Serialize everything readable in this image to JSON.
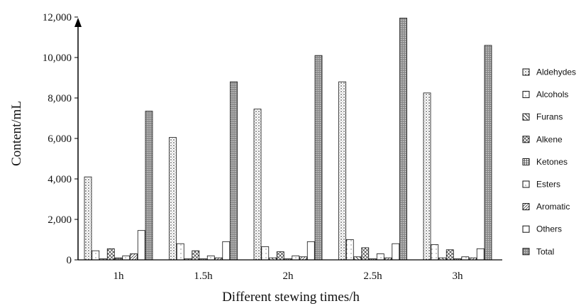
{
  "chart_data": {
    "type": "bar",
    "title": "",
    "xlabel": "Different stewing times/h",
    "ylabel": "Content/mL",
    "ylim": [
      0,
      12000
    ],
    "yticks": [
      0,
      2000,
      4000,
      6000,
      8000,
      10000,
      12000
    ],
    "ytick_labels": [
      "0",
      "2,000",
      "4,000",
      "6,000",
      "8,000",
      "10,000",
      "12,000"
    ],
    "categories": [
      "1h",
      "1.5h",
      "2h",
      "2.5h",
      "3h"
    ],
    "grid": false,
    "legend_position": "right",
    "series": [
      {
        "name": "Aldehydes",
        "pattern": "dots",
        "values": [
          4100,
          6050,
          7450,
          8800,
          8250
        ]
      },
      {
        "name": "Alcohols",
        "pattern": "sparse",
        "values": [
          450,
          800,
          650,
          1000,
          750
        ]
      },
      {
        "name": "Furans",
        "pattern": "diagonal",
        "values": [
          50,
          50,
          100,
          150,
          100
        ]
      },
      {
        "name": "Alkene",
        "pattern": "crosshatch",
        "values": [
          550,
          450,
          400,
          600,
          500
        ]
      },
      {
        "name": "Ketones",
        "pattern": "grid",
        "values": [
          100,
          50,
          50,
          50,
          50
        ]
      },
      {
        "name": "Esters",
        "pattern": "sparse",
        "values": [
          200,
          200,
          200,
          300,
          150
        ]
      },
      {
        "name": "Aromatic",
        "pattern": "hatch",
        "values": [
          300,
          100,
          150,
          100,
          100
        ]
      },
      {
        "name": "Others",
        "pattern": "plain",
        "values": [
          1450,
          900,
          900,
          800,
          550
        ]
      },
      {
        "name": "Total",
        "pattern": "dense",
        "values": [
          7350,
          8800,
          10100,
          11950,
          10600
        ]
      }
    ]
  }
}
